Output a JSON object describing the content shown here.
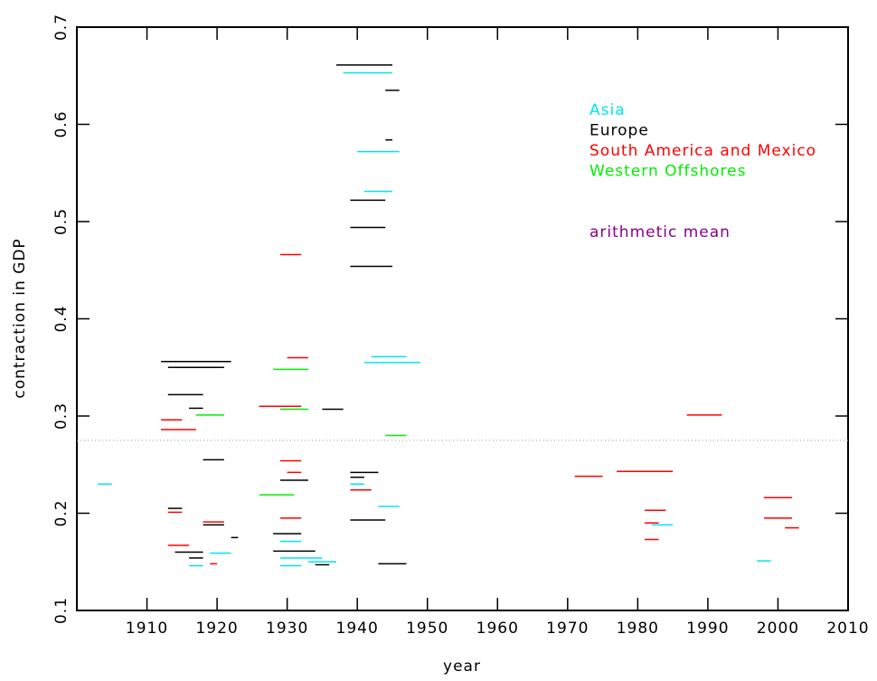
{
  "chart_data": {
    "type": "segments",
    "x_label": "year",
    "y_label": "contraction in GDP",
    "xlim": [
      1900,
      2010
    ],
    "xticks": [
      1910,
      1920,
      1930,
      1940,
      1950,
      1960,
      1970,
      1980,
      1990,
      2000,
      2010
    ],
    "ylim": [
      0.1,
      0.7
    ],
    "yticks": [
      0.1,
      0.2,
      0.3,
      0.4,
      0.5,
      0.6,
      0.7
    ],
    "series": [
      {
        "name": "Asia",
        "color": "#00e5ee",
        "x_start": [
          1903,
          1916,
          1919,
          1929,
          1929,
          1929,
          1933,
          1938,
          1940,
          1941,
          1942,
          1941,
          1943,
          1939,
          1982,
          1997
        ],
        "x_end": [
          1905,
          1918,
          1922,
          1932,
          1935,
          1932,
          1937,
          1945,
          1946,
          1945,
          1947,
          1949,
          1946,
          1941,
          1985,
          1999
        ],
        "values": [
          0.23,
          0.146,
          0.159,
          0.171,
          0.154,
          0.146,
          0.15,
          0.653,
          0.572,
          0.531,
          0.361,
          0.355,
          0.207,
          0.23,
          0.188,
          0.151
        ]
      },
      {
        "name": "Europe",
        "color": "#000000",
        "x_start": [
          1912,
          1913,
          1913,
          1916,
          1918,
          1913,
          1914,
          1916,
          1918,
          1922,
          1928,
          1928,
          1929,
          1934,
          1935,
          1937,
          1944,
          1944,
          1939,
          1939,
          1939,
          1939,
          1939,
          1939,
          1943
        ],
        "x_end": [
          1922,
          1921,
          1918,
          1918,
          1921,
          1915,
          1918,
          1918,
          1921,
          1923,
          1932,
          1934,
          1933,
          1936,
          1938,
          1945,
          1946,
          1945,
          1944,
          1944,
          1945,
          1943,
          1941,
          1944,
          1947
        ],
        "values": [
          0.356,
          0.35,
          0.322,
          0.308,
          0.255,
          0.205,
          0.16,
          0.154,
          0.188,
          0.175,
          0.179,
          0.161,
          0.234,
          0.147,
          0.307,
          0.661,
          0.635,
          0.584,
          0.522,
          0.494,
          0.454,
          0.242,
          0.237,
          0.193,
          0.148
        ]
      },
      {
        "name": "South America and Mexico",
        "color": "#ff0000",
        "x_start": [
          1912,
          1912,
          1913,
          1913,
          1918,
          1919,
          1926,
          1929,
          1930,
          1929,
          1930,
          1929,
          1939,
          1971,
          1977,
          1987,
          1981,
          1981,
          1981,
          1998,
          1998,
          2001
        ],
        "x_end": [
          1915,
          1917,
          1915,
          1916,
          1921,
          1920,
          1932,
          1932,
          1933,
          1932,
          1932,
          1932,
          1942,
          1975,
          1985,
          1992,
          1984,
          1983,
          1983,
          2002,
          2002,
          2003
        ],
        "values": [
          0.296,
          0.286,
          0.201,
          0.167,
          0.191,
          0.148,
          0.31,
          0.466,
          0.36,
          0.254,
          0.242,
          0.195,
          0.224,
          0.238,
          0.243,
          0.301,
          0.203,
          0.19,
          0.173,
          0.216,
          0.195,
          0.185
        ]
      },
      {
        "name": "Western Offshores",
        "color": "#00ee00",
        "x_start": [
          1917,
          1926,
          1928,
          1929,
          1944
        ],
        "x_end": [
          1921,
          1931,
          1933,
          1933,
          1947
        ],
        "values": [
          0.301,
          0.219,
          0.348,
          0.307,
          0.28
        ]
      }
    ],
    "mean": {
      "label": "arithmetic mean",
      "value": 0.275,
      "color": "#8b008b"
    }
  }
}
